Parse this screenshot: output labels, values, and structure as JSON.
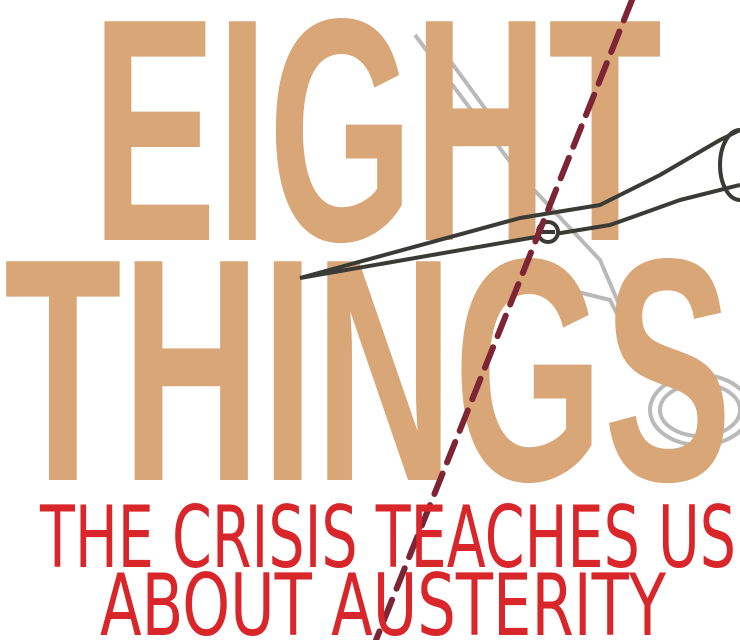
{
  "headline": {
    "line1": "EIGHT",
    "line2": "THINGS"
  },
  "subtitle": {
    "line1": "THE CRISIS TEACHES US",
    "line2": "ABOUT AUSTERITY"
  }
}
